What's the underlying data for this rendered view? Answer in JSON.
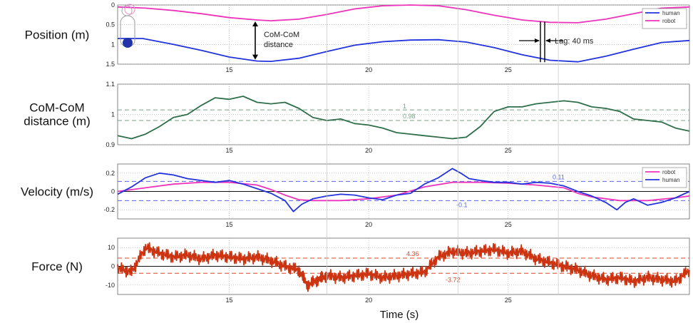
{
  "figure": {
    "xlabel": "Time (s)"
  },
  "chart_data": [
    {
      "type": "line",
      "ylabel": "Position (m)",
      "xlim": [
        11,
        31.5
      ],
      "ylim": [
        1.5,
        0
      ],
      "x_ticks": [
        15,
        20,
        25
      ],
      "y_ticks": [
        0,
        0.5,
        1,
        1.5
      ],
      "grid": true,
      "legend_position": "top-right",
      "series": [
        {
          "name": "human",
          "color": "#2233dd",
          "x": [
            11,
            11.9,
            13,
            14,
            15,
            16,
            16.5,
            17.5,
            18.5,
            19.5,
            20.5,
            21.5,
            22.5,
            23.5,
            24.5,
            25.5,
            26.5,
            27.5,
            28.5,
            29.5,
            30.5,
            31.5
          ],
          "y": [
            0.85,
            0.85,
            1.0,
            1.15,
            1.32,
            1.42,
            1.43,
            1.35,
            1.18,
            1.02,
            0.93,
            0.89,
            0.88,
            0.94,
            1.08,
            1.26,
            1.4,
            1.44,
            1.3,
            1.12,
            0.95,
            0.9
          ]
        },
        {
          "name": "robot",
          "color": "#ee33bb",
          "x": [
            11,
            12,
            13,
            14,
            15,
            16,
            16.5,
            17.5,
            18.5,
            19.5,
            20.5,
            21.5,
            22.5,
            23.5,
            24.5,
            25.5,
            26.5,
            27.5,
            28.5,
            29.5,
            30.5,
            31.5
          ],
          "y": [
            0.05,
            0.08,
            0.14,
            0.22,
            0.32,
            0.38,
            0.4,
            0.36,
            0.24,
            0.1,
            0.02,
            0.0,
            0.02,
            0.12,
            0.26,
            0.38,
            0.44,
            0.45,
            0.36,
            0.22,
            0.08,
            0.05
          ]
        }
      ],
      "annotations": {
        "comcom_line1": "CoM-CoM",
        "comcom_line2": "distance",
        "lag": "Lag: 40 ms"
      }
    },
    {
      "type": "line",
      "ylabel": "CoM-CoM distance (m)",
      "ylabel_line1": "CoM-CoM",
      "ylabel_line2": "distance (m)",
      "xlim": [
        11,
        31.5
      ],
      "ylim": [
        0.9,
        1.1
      ],
      "x_ticks": [
        15,
        20,
        25
      ],
      "y_ticks": [
        0.9,
        1,
        1.1
      ],
      "y_tick_labels": [
        "0.9",
        "1",
        "1.1"
      ],
      "grid": true,
      "series": [
        {
          "color": "#2e6e4a",
          "x": [
            11,
            11.5,
            12,
            12.5,
            13,
            13.5,
            14,
            14.5,
            15,
            15.5,
            16,
            16.5,
            17,
            17.5,
            18,
            18.5,
            19,
            19.5,
            20,
            20.5,
            21,
            21.5,
            22,
            22.5,
            23,
            23.5,
            24,
            24.5,
            25,
            25.5,
            26,
            26.5,
            27,
            27.5,
            28,
            28.5,
            29,
            29.5,
            30,
            30.5,
            31,
            31.5
          ],
          "y": [
            0.93,
            0.92,
            0.935,
            0.96,
            0.99,
            1.0,
            1.03,
            1.055,
            1.05,
            1.06,
            1.04,
            1.035,
            1.04,
            1.02,
            0.99,
            0.98,
            0.985,
            0.97,
            0.965,
            0.955,
            0.94,
            0.935,
            0.93,
            0.925,
            0.92,
            0.925,
            0.96,
            1.01,
            1.025,
            1.025,
            1.035,
            1.04,
            1.045,
            1.04,
            1.025,
            1.02,
            1.01,
            0.985,
            0.98,
            0.975,
            0.955,
            0.945
          ]
        }
      ],
      "reference_lines": [
        {
          "y": 1.015,
          "label": "1",
          "color": "#7aa088"
        },
        {
          "y": 0.98,
          "label": "0.98",
          "color": "#7aa088"
        }
      ]
    },
    {
      "type": "line",
      "ylabel": "Velocity (m/s)",
      "xlim": [
        11,
        31.5
      ],
      "ylim": [
        -0.3,
        0.3
      ],
      "x_ticks": [
        15,
        20,
        25
      ],
      "y_ticks": [
        -0.2,
        0,
        0.2
      ],
      "y_tick_labels": [
        "-0.2",
        "0",
        "0.2"
      ],
      "grid": true,
      "legend_position": "top-right",
      "series": [
        {
          "name": "robot",
          "color": "#ee33bb",
          "x": [
            11,
            12,
            13,
            14,
            15,
            16,
            16.5,
            17,
            17.5,
            18,
            19,
            20,
            21,
            22,
            23,
            24,
            25,
            26,
            27,
            27.5,
            28,
            29,
            30,
            31,
            31.5
          ],
          "y": [
            0.0,
            0.04,
            0.08,
            0.1,
            0.1,
            0.07,
            0.02,
            -0.04,
            -0.09,
            -0.1,
            -0.1,
            -0.08,
            -0.04,
            0.05,
            0.1,
            0.1,
            0.09,
            0.07,
            0.04,
            -0.02,
            -0.06,
            -0.1,
            -0.1,
            -0.07,
            -0.05
          ]
        },
        {
          "name": "human",
          "color": "#2233dd",
          "x": [
            11,
            11.5,
            12,
            12.5,
            13,
            13.5,
            14,
            14.5,
            15,
            15.5,
            16,
            16.5,
            17,
            17.3,
            17.6,
            18,
            18.5,
            19,
            19.5,
            20,
            20.5,
            21,
            21.5,
            22,
            22.5,
            23,
            23.3,
            23.6,
            24,
            24.5,
            25,
            25.5,
            26,
            26.5,
            27,
            27.5,
            28,
            28.5,
            28.9,
            29.2,
            29.5,
            30,
            30.5,
            31,
            31.5
          ],
          "y": [
            -0.03,
            0.05,
            0.15,
            0.2,
            0.18,
            0.14,
            0.12,
            0.1,
            0.12,
            0.08,
            0.03,
            -0.02,
            -0.1,
            -0.22,
            -0.14,
            -0.08,
            -0.05,
            -0.03,
            -0.04,
            -0.07,
            -0.09,
            -0.04,
            -0.02,
            0.08,
            0.15,
            0.25,
            0.2,
            0.14,
            0.12,
            0.1,
            0.1,
            0.08,
            0.1,
            0.09,
            0.06,
            0.0,
            -0.05,
            -0.12,
            -0.2,
            -0.12,
            -0.08,
            -0.15,
            -0.12,
            -0.07,
            0.0
          ]
        }
      ],
      "reference_lines": [
        {
          "y": 0.11,
          "label": "0.11",
          "color": "#5566ee"
        },
        {
          "y": -0.1,
          "label": "-0.1",
          "color": "#5566ee"
        }
      ]
    },
    {
      "type": "line",
      "ylabel": "Force (N)",
      "xlim": [
        11,
        31.5
      ],
      "ylim": [
        -15,
        15
      ],
      "x_ticks": [
        15,
        20,
        25
      ],
      "y_ticks": [
        -10,
        0,
        10
      ],
      "y_tick_labels": [
        "-10",
        "0",
        "10"
      ],
      "grid": true,
      "series": [
        {
          "color": "#cc3311",
          "x": [
            11,
            11.5,
            12,
            12.5,
            13,
            13.5,
            14,
            14.5,
            15,
            15.5,
            16,
            16.5,
            17,
            17.5,
            17.8,
            18.2,
            18.5,
            19,
            19.5,
            20,
            20.5,
            21,
            21.5,
            22,
            22.5,
            23,
            23.5,
            24,
            24.5,
            25,
            25.5,
            26,
            26.5,
            27,
            27.5,
            28,
            28.5,
            29,
            29.5,
            30,
            30.5,
            31,
            31.5
          ],
          "y": [
            -1,
            -3,
            10,
            7,
            5,
            6,
            4,
            6,
            5,
            4,
            5,
            3,
            0,
            -2,
            -10,
            -7,
            -5,
            -6,
            -5,
            -4,
            -6,
            -5,
            -4,
            -3,
            5,
            8,
            7,
            8,
            9,
            7,
            8,
            4,
            2,
            0,
            -2,
            -5,
            -7,
            -6,
            -8,
            -6,
            -7,
            -8,
            -2
          ]
        }
      ],
      "noise": {
        "amplitude": 3.5
      },
      "reference_lines": [
        {
          "y": 4.36,
          "label": "4.36",
          "color": "#dd4422"
        },
        {
          "y": -3.72,
          "label": "-3.72",
          "color": "#dd4422"
        }
      ]
    }
  ]
}
